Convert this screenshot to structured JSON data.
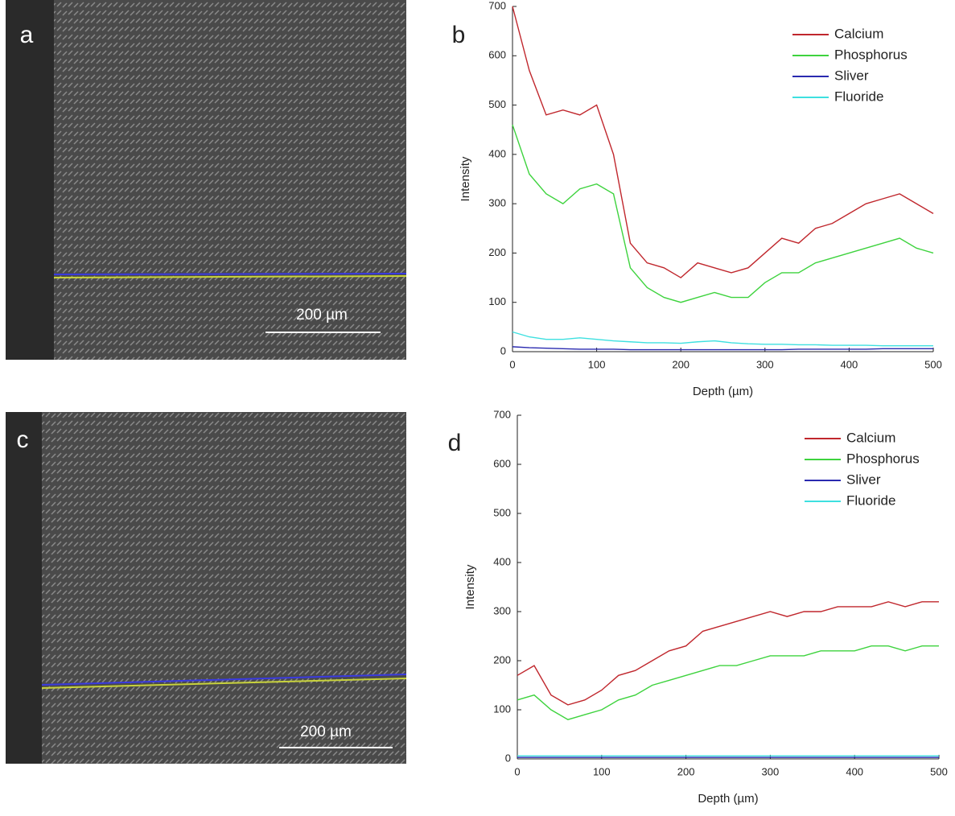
{
  "images": [
    {
      "label": "a",
      "scale_bar": "200 µm"
    },
    {
      "label": "c",
      "scale_bar": "200 µm"
    }
  ],
  "chart_data": [
    {
      "type": "line",
      "panel": "b",
      "x_label": "Depth (µm)",
      "y_label": "Intensity",
      "xlim": [
        0,
        500
      ],
      "ylim": [
        0,
        700
      ],
      "xticks": [
        0,
        100,
        200,
        300,
        400,
        500
      ],
      "yticks": [
        0,
        100,
        200,
        300,
        400,
        500,
        600,
        700
      ],
      "legend": "upper right",
      "x": [
        0,
        20,
        40,
        60,
        80,
        100,
        120,
        140,
        160,
        180,
        200,
        220,
        240,
        260,
        280,
        300,
        320,
        340,
        360,
        380,
        400,
        420,
        440,
        460,
        480,
        500
      ],
      "series": [
        {
          "name": "Calcium",
          "color": "#c0272d",
          "values": [
            700,
            570,
            480,
            490,
            480,
            500,
            400,
            220,
            180,
            170,
            150,
            180,
            170,
            160,
            170,
            200,
            230,
            220,
            250,
            260,
            280,
            300,
            310,
            320,
            300,
            280
          ]
        },
        {
          "name": "Phosphorus",
          "color": "#3ed33e",
          "values": [
            460,
            360,
            320,
            300,
            330,
            340,
            320,
            170,
            130,
            110,
            100,
            110,
            120,
            110,
            110,
            140,
            160,
            160,
            180,
            190,
            200,
            210,
            220,
            230,
            210,
            200
          ]
        },
        {
          "name": "Sliver",
          "color": "#2a2ab0",
          "values": [
            10,
            8,
            7,
            6,
            5,
            5,
            5,
            4,
            4,
            4,
            4,
            4,
            4,
            4,
            4,
            4,
            4,
            5,
            5,
            5,
            5,
            5,
            6,
            6,
            6,
            6
          ]
        },
        {
          "name": "Fluoride",
          "color": "#3ee0e0",
          "values": [
            40,
            30,
            25,
            25,
            28,
            25,
            22,
            20,
            18,
            18,
            17,
            20,
            22,
            18,
            16,
            15,
            15,
            14,
            14,
            13,
            13,
            13,
            12,
            12,
            12,
            12
          ]
        }
      ]
    },
    {
      "type": "line",
      "panel": "d",
      "x_label": "Depth (µm)",
      "y_label": "Intensity",
      "xlim": [
        0,
        500
      ],
      "ylim": [
        0,
        700
      ],
      "xticks": [
        0,
        100,
        200,
        300,
        400,
        500
      ],
      "yticks": [
        0,
        100,
        200,
        300,
        400,
        500,
        600,
        700
      ],
      "legend": "upper right",
      "x": [
        0,
        20,
        40,
        60,
        80,
        100,
        120,
        140,
        160,
        180,
        200,
        220,
        240,
        260,
        280,
        300,
        320,
        340,
        360,
        380,
        400,
        420,
        440,
        460,
        480,
        500
      ],
      "series": [
        {
          "name": "Calcium",
          "color": "#c0272d",
          "values": [
            170,
            190,
            130,
            110,
            120,
            140,
            170,
            180,
            200,
            220,
            230,
            260,
            270,
            280,
            290,
            300,
            290,
            300,
            300,
            310,
            310,
            310,
            320,
            310,
            320,
            320
          ]
        },
        {
          "name": "Phosphorus",
          "color": "#3ed33e",
          "values": [
            120,
            130,
            100,
            80,
            90,
            100,
            120,
            130,
            150,
            160,
            170,
            180,
            190,
            190,
            200,
            210,
            210,
            210,
            220,
            220,
            220,
            230,
            230,
            220,
            230,
            230
          ]
        },
        {
          "name": "Sliver",
          "color": "#2a2ab0",
          "values": [
            3,
            3,
            3,
            3,
            3,
            3,
            3,
            3,
            3,
            3,
            3,
            3,
            3,
            3,
            3,
            3,
            3,
            3,
            3,
            3,
            3,
            3,
            3,
            3,
            3,
            3
          ]
        },
        {
          "name": "Fluoride",
          "color": "#3ee0e0",
          "values": [
            6,
            6,
            6,
            6,
            6,
            6,
            6,
            6,
            6,
            6,
            6,
            6,
            6,
            6,
            6,
            6,
            6,
            6,
            6,
            6,
            6,
            6,
            6,
            6,
            6,
            6
          ]
        }
      ]
    }
  ]
}
